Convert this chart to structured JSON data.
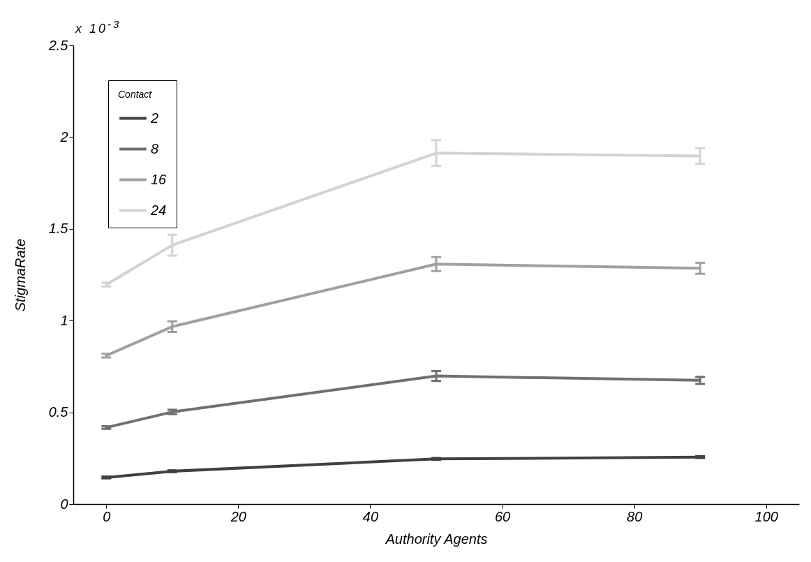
{
  "chart_data": {
    "type": "line",
    "xlabel": "Authority Agents",
    "ylabel": "StigmaRate",
    "legend_title": "Contact",
    "annotations": [
      "x 10$^{-3}$"
    ],
    "x": [
      0,
      10,
      50,
      90
    ],
    "series": [
      {
        "name": "2",
        "color": "#404040",
        "values": [
          0.145,
          0.179,
          0.246,
          0.256
        ],
        "errors": [
          0.005,
          0.005,
          0.005,
          0.005
        ]
      },
      {
        "name": "8",
        "color": "#707070",
        "values": [
          0.417,
          0.502,
          0.698,
          0.674
        ],
        "errors": [
          0.007,
          0.012,
          0.027,
          0.019
        ]
      },
      {
        "name": "16",
        "color": "#a0a0a0",
        "values": [
          0.809,
          0.967,
          1.308,
          1.285
        ],
        "errors": [
          0.01,
          0.029,
          0.038,
          0.03
        ]
      },
      {
        "name": "24",
        "color": "#d3d3d3",
        "values": [
          1.196,
          1.411,
          1.913,
          1.897
        ],
        "errors": [
          0.01,
          0.057,
          0.07,
          0.043
        ]
      }
    ],
    "xlim": [
      -5,
      105
    ],
    "xticks": [
      0,
      20,
      40,
      60,
      80,
      100
    ],
    "ylim": [
      0,
      2.5
    ],
    "yticks": [
      0,
      0.5,
      1,
      1.5,
      2,
      2.5
    ],
    "grid": false,
    "legend": "top left",
    "marker": "none",
    "line_style": "solid"
  }
}
